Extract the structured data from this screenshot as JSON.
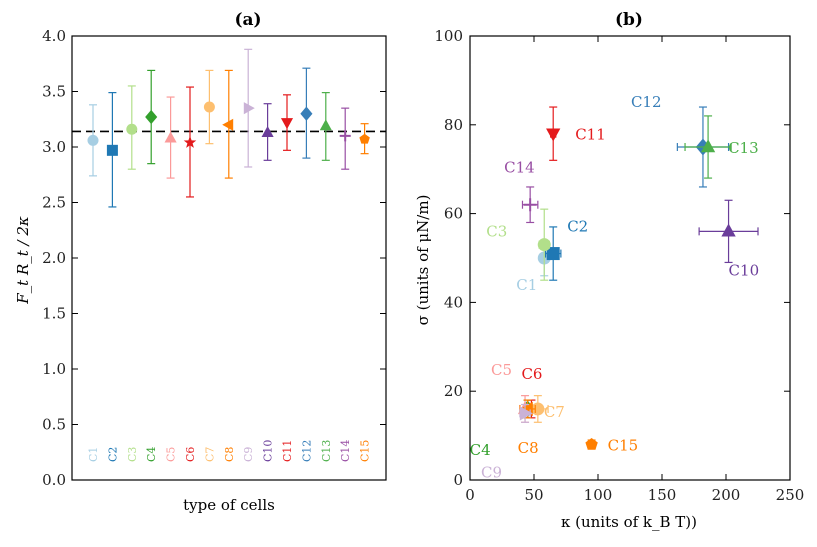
{
  "chart_data": [
    {
      "type": "scatter",
      "title": "(a)",
      "xlabel": "type of cells",
      "ylabel": "F_t R_t / 2κ",
      "ylim": [
        0.0,
        4.0
      ],
      "yticks": [
        "0.0",
        "0.5",
        "1.0",
        "1.5",
        "2.0",
        "2.5",
        "3.0",
        "3.5",
        "4.0"
      ],
      "reference_line": 3.14,
      "categories": [
        "C1",
        "C2",
        "C3",
        "C4",
        "C5",
        "C6",
        "C7",
        "C8",
        "C9",
        "C10",
        "C11",
        "C12",
        "C13",
        "C14",
        "C15"
      ],
      "values": [
        3.06,
        2.97,
        3.16,
        3.27,
        3.08,
        3.04,
        3.36,
        3.2,
        3.35,
        3.13,
        3.22,
        3.3,
        3.19,
        3.1,
        3.07
      ],
      "err_low": [
        2.74,
        2.46,
        2.8,
        2.85,
        2.72,
        2.55,
        3.03,
        2.72,
        2.82,
        2.88,
        2.97,
        2.9,
        2.88,
        2.8,
        2.94
      ],
      "err_high": [
        3.38,
        3.49,
        3.55,
        3.69,
        3.45,
        3.54,
        3.69,
        3.69,
        3.88,
        3.39,
        3.47,
        3.71,
        3.49,
        3.35,
        3.21
      ]
    },
    {
      "type": "scatter",
      "title": "(b)",
      "xlabel": "κ (units of k_B T))",
      "ylabel": "σ (units of μN/m)",
      "xlim": [
        0,
        250
      ],
      "ylim": [
        0,
        100
      ],
      "xticks": [
        "0",
        "50",
        "100",
        "150",
        "200",
        "250"
      ],
      "yticks": [
        "0",
        "20",
        "40",
        "60",
        "80",
        "100"
      ],
      "points": [
        {
          "name": "C1",
          "x": 58,
          "y": 50,
          "xerr": 3,
          "yerr": 4
        },
        {
          "name": "C2",
          "x": 65,
          "y": 51,
          "xerr": 6,
          "yerr": 6
        },
        {
          "name": "C3",
          "x": 58,
          "y": 53,
          "xerr": 4,
          "yerr": 8
        },
        {
          "name": "C4",
          "x": 45,
          "y": 16,
          "xerr": 3,
          "yerr": 2
        },
        {
          "name": "C5",
          "x": 43,
          "y": 16,
          "xerr": 4,
          "yerr": 3
        },
        {
          "name": "C6",
          "x": 48,
          "y": 16,
          "xerr": 3,
          "yerr": 2
        },
        {
          "name": "C7",
          "x": 53,
          "y": 16,
          "xerr": 8,
          "yerr": 3
        },
        {
          "name": "C8",
          "x": 45,
          "y": 16,
          "xerr": 6,
          "yerr": 2
        },
        {
          "name": "C9",
          "x": 43,
          "y": 15,
          "xerr": 4,
          "yerr": 2
        },
        {
          "name": "C10",
          "x": 202,
          "y": 56,
          "xerr": 23,
          "yerr": 7
        },
        {
          "name": "C11",
          "x": 65,
          "y": 78,
          "xerr": 2,
          "yerr": 6
        },
        {
          "name": "C12",
          "x": 182,
          "y": 75,
          "xerr": 20,
          "yerr": 9
        },
        {
          "name": "C13",
          "x": 186,
          "y": 75,
          "xerr": 18,
          "yerr": 7
        },
        {
          "name": "C14",
          "x": 47,
          "y": 62,
          "xerr": 6,
          "yerr": 4
        },
        {
          "name": "C15",
          "x": 95,
          "y": 8,
          "xerr": 2,
          "yerr": 1
        }
      ]
    }
  ],
  "colors": {
    "C1": "#a6cee3",
    "C2": "#1f78b4",
    "C3": "#b2df8a",
    "C4": "#33a02c",
    "C5": "#fb9a99",
    "C6": "#e31a1c",
    "C7": "#fdbf6f",
    "C8": "#ff7f00",
    "C9": "#cab2d6",
    "C10": "#6a3d9a",
    "C11": "#e41a1c",
    "C12": "#377eb8",
    "C13": "#4daf4a",
    "C14": "#984ea3",
    "C15": "#ff7f00"
  },
  "markers": {
    "C1": "circle",
    "C2": "square",
    "C3": "circle",
    "C4": "diamond",
    "C5": "triangle-up",
    "C6": "star",
    "C7": "circle",
    "C8": "triangle-left",
    "C9": "triangle-right",
    "C10": "triangle-up",
    "C11": "triangle-down",
    "C12": "diamond",
    "C13": "triangle-up",
    "C14": "plus",
    "C15": "pentagon"
  }
}
